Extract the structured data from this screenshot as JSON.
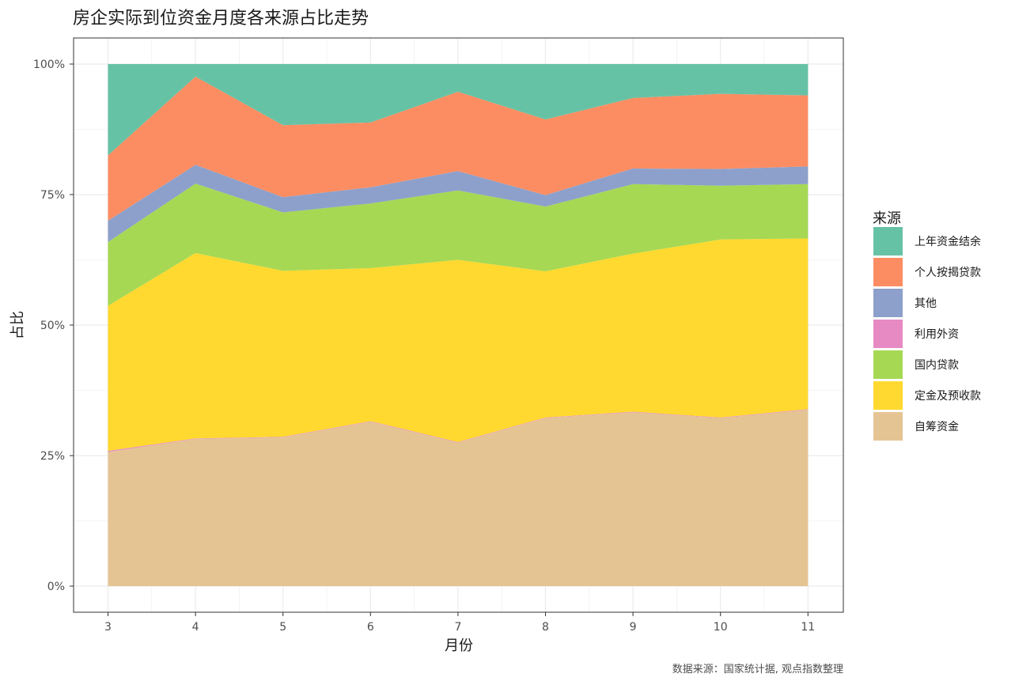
{
  "chart_data": {
    "type": "area",
    "stacked": "percent",
    "title": "房企实际到位资金月度各来源占比走势",
    "xlabel": "月份",
    "ylabel": "占比",
    "caption": "数据来源：国家统计据, 观点指数整理",
    "x": [
      3,
      4,
      5,
      6,
      7,
      8,
      9,
      10,
      11
    ],
    "x_ticks": [
      "3",
      "4",
      "5",
      "6",
      "7",
      "8",
      "9",
      "10",
      "11"
    ],
    "y_ticks": [
      "0%",
      "25%",
      "50%",
      "75%",
      "100%"
    ],
    "ylim": [
      0,
      1
    ],
    "grid": true,
    "legend_title": "来源",
    "legend_position": "right",
    "series": [
      {
        "name": "自筹资金",
        "color": "#E5C494",
        "values": [
          0.257,
          0.282,
          0.285,
          0.315,
          0.275,
          0.322,
          0.333,
          0.322,
          0.338
        ]
      },
      {
        "name": "利用外资",
        "color": "#E78AC3",
        "values": [
          0.002,
          0.001,
          0.001,
          0.001,
          0.001,
          0.001,
          0.001,
          0.001,
          0.001
        ]
      },
      {
        "name": "定金及预收款",
        "color": "#FFD92F",
        "values": [
          0.278,
          0.355,
          0.318,
          0.293,
          0.349,
          0.28,
          0.303,
          0.341,
          0.327
        ]
      },
      {
        "name": "国内贷款",
        "color": "#A6D854",
        "values": [
          0.122,
          0.133,
          0.112,
          0.124,
          0.133,
          0.124,
          0.133,
          0.103,
          0.104
        ]
      },
      {
        "name": "其他",
        "color": "#8DA0CB",
        "values": [
          0.041,
          0.036,
          0.029,
          0.031,
          0.037,
          0.022,
          0.03,
          0.032,
          0.034
        ]
      },
      {
        "name": "个人按揭贷款",
        "color": "#FC8D62",
        "values": [
          0.125,
          0.169,
          0.138,
          0.124,
          0.152,
          0.145,
          0.135,
          0.144,
          0.136
        ]
      },
      {
        "name": "上年资金结余",
        "color": "#66C2A5",
        "values": [
          0.175,
          0.024,
          0.117,
          0.112,
          0.053,
          0.106,
          0.065,
          0.057,
          0.06
        ]
      }
    ],
    "legend_order": [
      "上年资金结余",
      "个人按揭贷款",
      "其他",
      "利用外资",
      "国内贷款",
      "定金及预收款",
      "自筹资金"
    ]
  }
}
